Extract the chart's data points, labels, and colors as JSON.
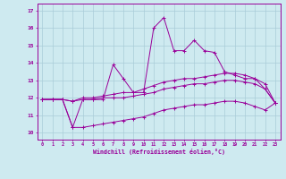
{
  "xlabel": "Windchill (Refroidissement éolien,°C)",
  "background_color": "#ceeaf0",
  "grid_color": "#aaccd8",
  "line_color": "#990099",
  "xlim": [
    -0.5,
    23.5
  ],
  "ylim": [
    9.6,
    17.4
  ],
  "xticks": [
    0,
    1,
    2,
    3,
    4,
    5,
    6,
    7,
    8,
    9,
    10,
    11,
    12,
    13,
    14,
    15,
    16,
    17,
    18,
    19,
    20,
    21,
    22,
    23
  ],
  "yticks": [
    10,
    11,
    12,
    13,
    14,
    15,
    16,
    17
  ],
  "series": {
    "line1_x": [
      0,
      1,
      2,
      3,
      4,
      5,
      6,
      7,
      8,
      9,
      10,
      11,
      12,
      13,
      14,
      15,
      16,
      17,
      18,
      19,
      20,
      21,
      22,
      23
    ],
    "line1_y": [
      11.9,
      11.9,
      11.9,
      10.3,
      11.9,
      11.9,
      11.9,
      13.9,
      13.1,
      12.3,
      12.3,
      16.0,
      16.6,
      14.7,
      14.7,
      15.3,
      14.7,
      14.6,
      13.5,
      13.3,
      13.1,
      13.1,
      12.5,
      11.7
    ],
    "line2_x": [
      0,
      1,
      2,
      3,
      4,
      5,
      6,
      7,
      8,
      9,
      10,
      11,
      12,
      13,
      14,
      15,
      16,
      17,
      18,
      19,
      20,
      21,
      22,
      23
    ],
    "line2_y": [
      11.9,
      11.9,
      11.9,
      11.8,
      12.0,
      12.0,
      12.1,
      12.2,
      12.3,
      12.3,
      12.5,
      12.7,
      12.9,
      13.0,
      13.1,
      13.1,
      13.2,
      13.3,
      13.4,
      13.4,
      13.3,
      13.1,
      12.8,
      11.7
    ],
    "line3_x": [
      0,
      1,
      2,
      3,
      4,
      5,
      6,
      7,
      8,
      9,
      10,
      11,
      12,
      13,
      14,
      15,
      16,
      17,
      18,
      19,
      20,
      21,
      22,
      23
    ],
    "line3_y": [
      11.9,
      11.9,
      11.9,
      11.8,
      11.9,
      11.9,
      12.0,
      12.0,
      12.0,
      12.1,
      12.2,
      12.3,
      12.5,
      12.6,
      12.7,
      12.8,
      12.8,
      12.9,
      13.0,
      13.0,
      12.9,
      12.8,
      12.5,
      11.7
    ],
    "line4_x": [
      0,
      1,
      2,
      3,
      4,
      5,
      6,
      7,
      8,
      9,
      10,
      11,
      12,
      13,
      14,
      15,
      16,
      17,
      18,
      19,
      20,
      21,
      22,
      23
    ],
    "line4_y": [
      11.9,
      11.9,
      11.9,
      10.3,
      10.3,
      10.4,
      10.5,
      10.6,
      10.7,
      10.8,
      10.9,
      11.1,
      11.3,
      11.4,
      11.5,
      11.6,
      11.6,
      11.7,
      11.8,
      11.8,
      11.7,
      11.5,
      11.3,
      11.7
    ]
  }
}
